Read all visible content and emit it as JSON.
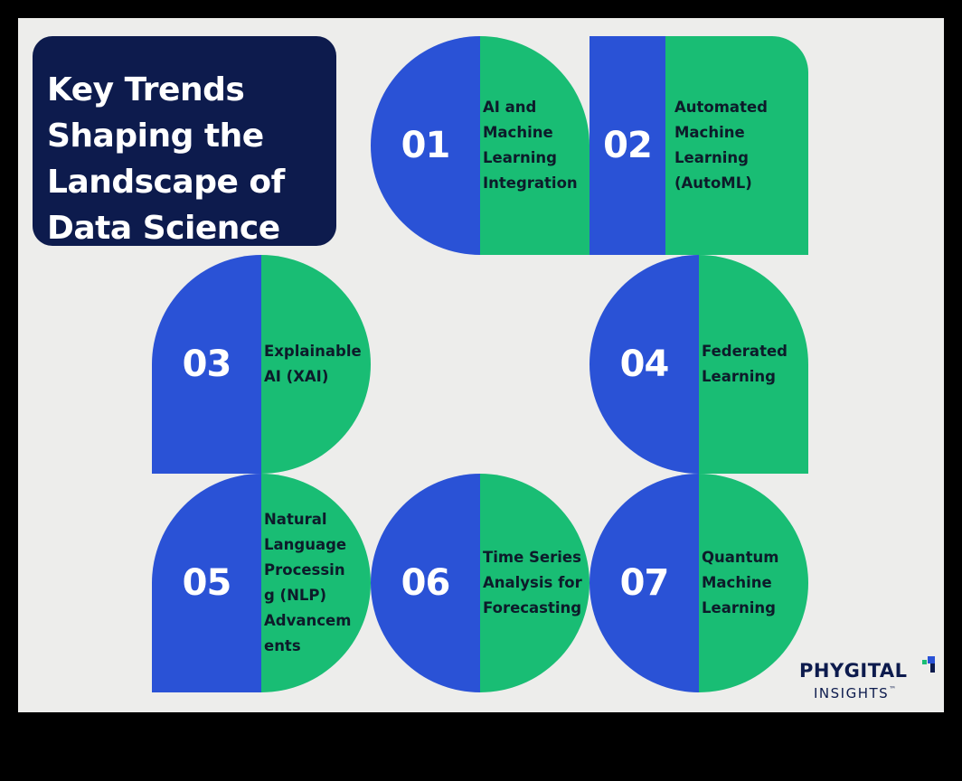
{
  "title": {
    "lines": [
      "Key Trends",
      "Shaping the",
      "Landscape of",
      "Data Science"
    ]
  },
  "trends": [
    {
      "number": "01",
      "label": "AI and\nMachine\nLearning\nIntegration"
    },
    {
      "number": "02",
      "label": "Automated\nMachine\nLearning\n(AutoML)"
    },
    {
      "number": "03",
      "label": "Explainable\nAI (XAI)"
    },
    {
      "number": "04",
      "label": "Federated\nLearning"
    },
    {
      "number": "05",
      "label": "Natural\nLanguage\nProcessin\ng (NLP)\nAdvancem\nents"
    },
    {
      "number": "06",
      "label": "Time Series\nAnalysis for\nForecasting"
    },
    {
      "number": "07",
      "label": "Quantum\nMachine\nLearning"
    }
  ],
  "logo": {
    "main": "PHYGITAL",
    "sub": "INSIGHTS",
    "trademark": "™"
  },
  "colors": {
    "navy": "#0d1b4d",
    "blue": "#2a52d6",
    "green": "#19bd74",
    "background": "#ededeb"
  }
}
